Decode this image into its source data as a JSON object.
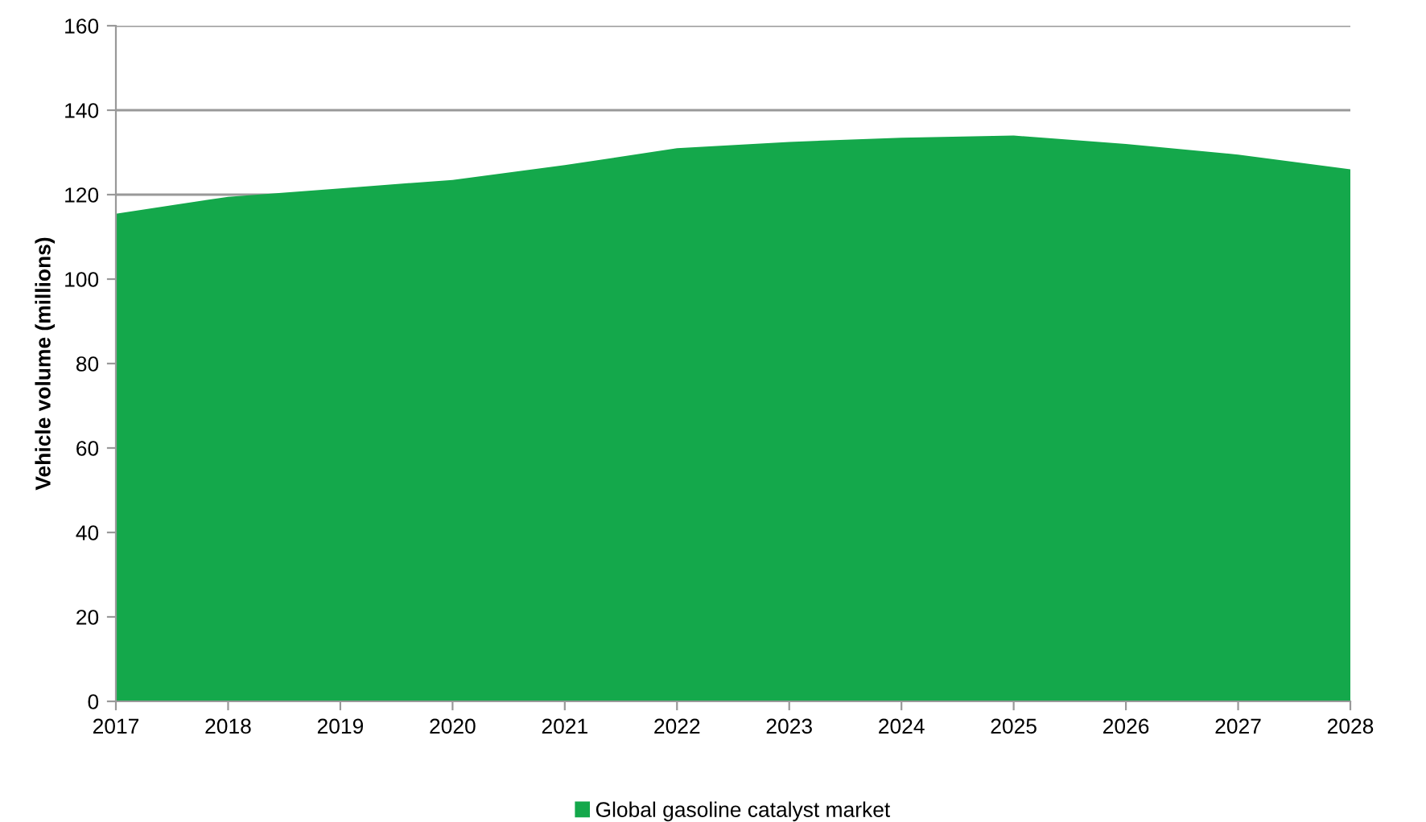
{
  "chart_data": {
    "type": "area",
    "ylabel": "Vehicle volume (millions)",
    "categories": [
      "2017",
      "2018",
      "2019",
      "2020",
      "2021",
      "2022",
      "2023",
      "2024",
      "2025",
      "2026",
      "2027",
      "2028"
    ],
    "series": [
      {
        "name": "Global gasoline catalyst market",
        "color": "#14a84b",
        "values": [
          115.5,
          119.5,
          121.5,
          123.5,
          127,
          131,
          132.5,
          133.5,
          134,
          132,
          129.5,
          126
        ]
      }
    ],
    "ylim": [
      0,
      160
    ],
    "yticks": [
      0,
      20,
      40,
      60,
      80,
      100,
      120,
      140,
      160
    ],
    "grid": "y",
    "legend": "bottom"
  }
}
